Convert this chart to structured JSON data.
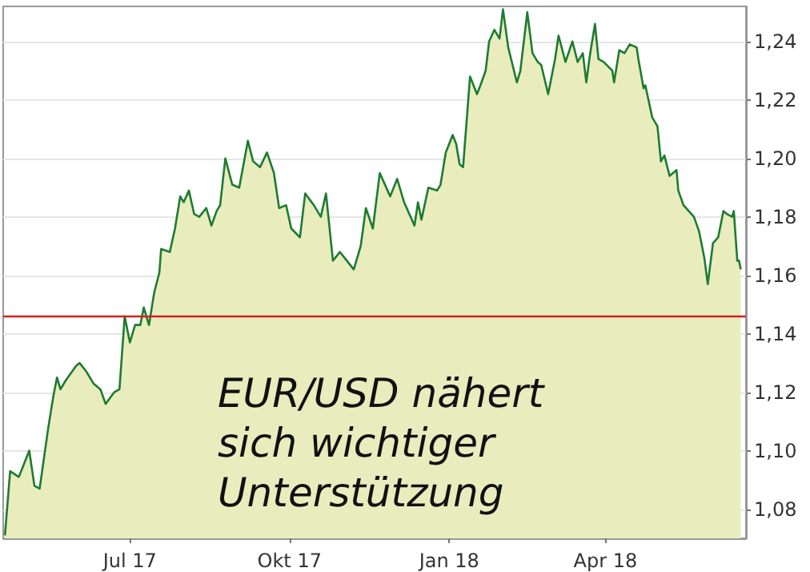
{
  "chart_data": {
    "type": "area",
    "x": [
      "2017-04-20",
      "2017-04-23",
      "2017-04-28",
      "2017-04-30",
      "2017-05-04",
      "2017-05-07",
      "2017-05-10",
      "2017-05-15",
      "2017-05-18",
      "2017-05-20",
      "2017-05-22",
      "2017-05-25",
      "2017-05-31",
      "2017-06-02",
      "2017-06-06",
      "2017-06-10",
      "2017-06-14",
      "2017-06-17",
      "2017-06-22",
      "2017-06-25",
      "2017-06-28",
      "2017-07-01",
      "2017-07-04",
      "2017-07-07",
      "2017-07-09",
      "2017-07-12",
      "2017-07-15",
      "2017-07-18",
      "2017-07-19",
      "2017-07-24",
      "2017-07-27",
      "2017-07-30",
      "2017-08-01",
      "2017-08-04",
      "2017-08-07",
      "2017-08-10",
      "2017-08-14",
      "2017-08-17",
      "2017-08-20",
      "2017-08-22",
      "2017-08-25",
      "2017-08-29",
      "2017-09-02",
      "2017-09-07",
      "2017-09-10",
      "2017-09-14",
      "2017-09-18",
      "2017-09-22",
      "2017-09-25",
      "2017-09-29",
      "2017-10-02",
      "2017-10-07",
      "2017-10-10",
      "2017-10-15",
      "2017-10-19",
      "2017-10-22",
      "2017-10-26",
      "2017-10-30",
      "2017-11-03",
      "2017-11-07",
      "2017-11-11",
      "2017-11-14",
      "2017-11-18",
      "2017-11-22",
      "2017-11-28",
      "2017-12-02",
      "2017-12-06",
      "2017-12-09",
      "2017-12-12",
      "2017-12-14",
      "2017-12-16",
      "2017-12-20",
      "2017-12-25",
      "2017-12-27",
      "2017-12-30",
      "2018-01-03",
      "2018-01-05",
      "2018-01-07",
      "2018-01-09",
      "2018-01-13",
      "2018-01-15",
      "2018-01-17",
      "2018-01-19",
      "2018-01-22",
      "2018-01-24",
      "2018-01-27",
      "2018-01-30",
      "2018-02-01",
      "2018-02-04",
      "2018-02-09",
      "2018-02-11",
      "2018-02-15",
      "2018-02-18",
      "2018-02-21",
      "2018-02-23",
      "2018-02-27",
      "2018-03-03",
      "2018-03-05",
      "2018-03-09",
      "2018-03-13",
      "2018-03-16",
      "2018-03-19",
      "2018-03-21",
      "2018-03-23",
      "2018-03-26",
      "2018-03-28",
      "2018-03-31",
      "2018-04-05",
      "2018-04-06",
      "2018-04-09",
      "2018-04-12",
      "2018-04-15",
      "2018-04-19",
      "2018-04-20",
      "2018-04-23",
      "2018-04-24",
      "2018-04-28",
      "2018-05-01",
      "2018-05-03",
      "2018-05-05",
      "2018-05-08",
      "2018-05-12",
      "2018-05-13",
      "2018-05-16",
      "2018-05-19",
      "2018-05-22",
      "2018-05-25",
      "2018-05-28",
      "2018-05-30",
      "2018-06-02",
      "2018-06-05",
      "2018-06-08",
      "2018-06-10",
      "2018-06-13",
      "2018-06-14",
      "2018-06-16",
      "2018-06-17",
      "2018-06-18"
    ],
    "series": [
      {
        "color": "#1e7b32",
        "values": [
          1.071,
          1.093,
          1.091,
          1.094,
          1.1,
          1.088,
          1.087,
          1.108,
          1.119,
          1.125,
          1.121,
          1.124,
          1.129,
          1.13,
          1.127,
          1.123,
          1.121,
          1.116,
          1.12,
          1.121,
          1.146,
          1.137,
          1.143,
          1.143,
          1.149,
          1.143,
          1.154,
          1.161,
          1.169,
          1.168,
          1.176,
          1.187,
          1.185,
          1.189,
          1.181,
          1.18,
          1.183,
          1.177,
          1.182,
          1.184,
          1.2,
          1.191,
          1.19,
          1.206,
          1.199,
          1.197,
          1.202,
          1.195,
          1.183,
          1.184,
          1.176,
          1.173,
          1.188,
          1.184,
          1.18,
          1.188,
          1.165,
          1.168,
          1.165,
          1.162,
          1.17,
          1.183,
          1.176,
          1.195,
          1.187,
          1.193,
          1.185,
          1.181,
          1.177,
          1.185,
          1.179,
          1.19,
          1.189,
          1.191,
          1.202,
          1.208,
          1.205,
          1.198,
          1.197,
          1.228,
          1.225,
          1.222,
          1.225,
          1.23,
          1.24,
          1.244,
          1.241,
          1.251,
          1.238,
          1.226,
          1.23,
          1.25,
          1.236,
          1.233,
          1.232,
          1.222,
          1.234,
          1.242,
          1.233,
          1.24,
          1.233,
          1.236,
          1.226,
          1.235,
          1.246,
          1.234,
          1.233,
          1.23,
          1.226,
          1.237,
          1.236,
          1.239,
          1.238,
          1.234,
          1.224,
          1.225,
          1.214,
          1.211,
          1.199,
          1.201,
          1.194,
          1.196,
          1.189,
          1.184,
          1.182,
          1.18,
          1.175,
          1.166,
          1.157,
          1.171,
          1.173,
          1.182,
          1.181,
          1.18,
          1.182,
          1.165,
          1.165,
          1.162
        ]
      }
    ],
    "xlim": [
      "2017-04-19",
      "2018-06-21"
    ],
    "xticks": [
      {
        "value": "2017-07-01",
        "label": "Jul 17"
      },
      {
        "value": "2017-10-01",
        "label": "Okt 17"
      },
      {
        "value": "2018-01-01",
        "label": "Jan 18"
      },
      {
        "value": "2018-04-01",
        "label": "Apr 18"
      }
    ],
    "ylim": [
      1.07,
      1.252
    ],
    "yticks": [
      {
        "value": 1.08,
        "label": "1,08"
      },
      {
        "value": 1.1,
        "label": "1,10"
      },
      {
        "value": 1.12,
        "label": "1,12"
      },
      {
        "value": 1.14,
        "label": "1,14"
      },
      {
        "value": 1.16,
        "label": "1,16"
      },
      {
        "value": 1.18,
        "label": "1,18"
      },
      {
        "value": 1.2,
        "label": "1,20"
      },
      {
        "value": 1.22,
        "label": "1,22"
      },
      {
        "value": 1.24,
        "label": "1,24"
      }
    ],
    "grid": "y",
    "ref_lines": [
      {
        "axis": "y",
        "value": 1.146,
        "color": "#d42020"
      }
    ],
    "annotations": [
      "EUR/USD nähert sich wichtiger Unterstützung"
    ]
  }
}
